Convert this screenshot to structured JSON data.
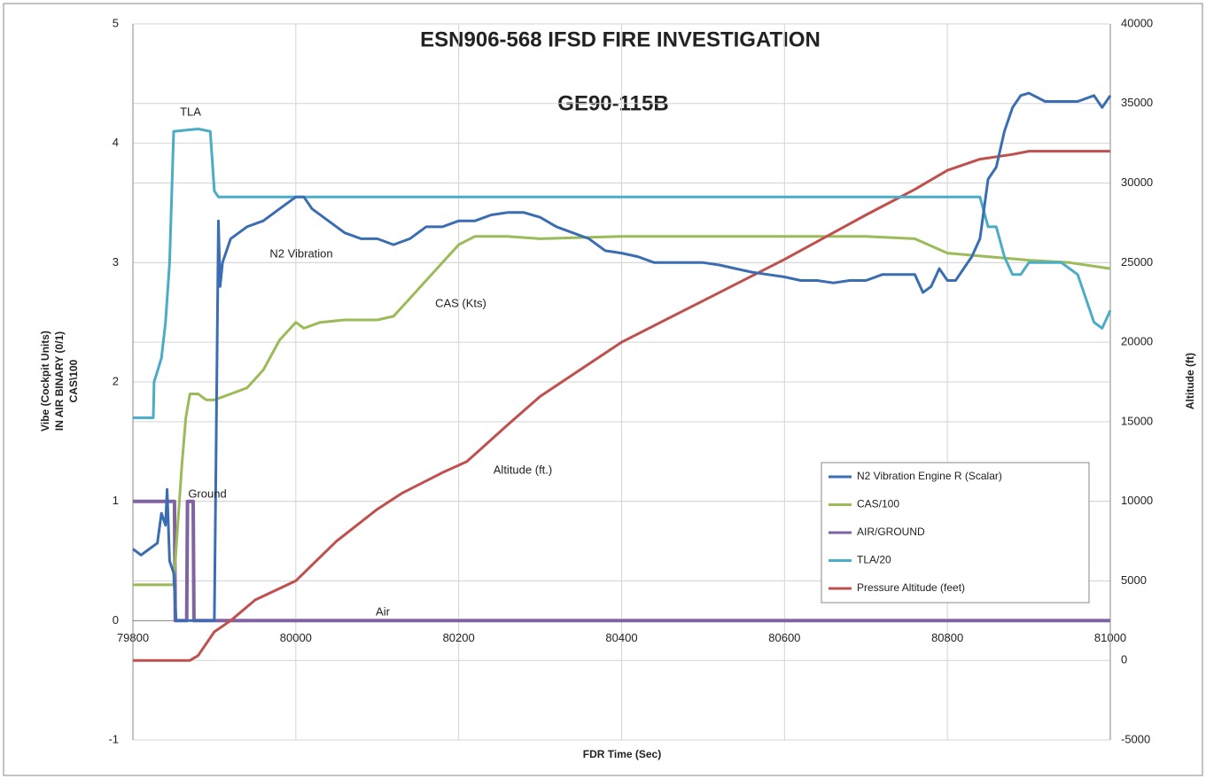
{
  "chart_data": {
    "type": "line",
    "title": "ESN906-568 IFSD FIRE INVESTIGATION",
    "subtitle": "GE90-115B",
    "xlabel": "FDR Time (Sec)",
    "ylabel": [
      "Vibe (Cockpit Units)",
      "IN AIR BINARY (0/1)",
      "CAS\\100"
    ],
    "y2label": "Altitude (ft)",
    "xlim": [
      79800,
      81000
    ],
    "xticks": [
      79800,
      80000,
      80200,
      80400,
      80600,
      80800,
      81000
    ],
    "ylim": [
      -1,
      5
    ],
    "yticks": [
      -1,
      0,
      1,
      2,
      3,
      4,
      5
    ],
    "y2lim": [
      -5000,
      40000
    ],
    "y2ticks": [
      -5000,
      0,
      5000,
      10000,
      15000,
      20000,
      25000,
      30000,
      35000,
      40000
    ],
    "grid": true,
    "legend": "lower right",
    "annotations": [
      "TLA",
      "N2 Vibration",
      "CAS (Kts)",
      "Altitude (ft.)",
      "Ground",
      "Air"
    ],
    "series": [
      {
        "name": "N2 Vibration Engine R (Scalar)",
        "color": "#3b6db3",
        "x": [
          79800,
          79810,
          79820,
          79830,
          79835,
          79840,
          79842,
          79845,
          79850,
          79853,
          79870,
          79900,
          79905,
          79907,
          79910,
          79920,
          79940,
          79960,
          79980,
          80000,
          80010,
          80020,
          80040,
          80060,
          80080,
          80100,
          80120,
          80140,
          80160,
          80180,
          80200,
          80220,
          80240,
          80260,
          80280,
          80300,
          80320,
          80340,
          80360,
          80380,
          80400,
          80420,
          80440,
          80460,
          80480,
          80500,
          80520,
          80540,
          80560,
          80580,
          80600,
          80620,
          80640,
          80660,
          80680,
          80700,
          80720,
          80740,
          80760,
          80770,
          80780,
          80790,
          80800,
          80810,
          80820,
          80830,
          80840,
          80850,
          80860,
          80870,
          80880,
          80890,
          80900,
          80920,
          80940,
          80960,
          80980,
          80990,
          81000
        ],
        "values": [
          0.6,
          0.55,
          0.6,
          0.65,
          0.9,
          0.8,
          1.1,
          0.5,
          0.4,
          0,
          0,
          0,
          3.35,
          2.8,
          3.0,
          3.2,
          3.3,
          3.35,
          3.45,
          3.55,
          3.55,
          3.45,
          3.35,
          3.25,
          3.2,
          3.2,
          3.15,
          3.2,
          3.3,
          3.3,
          3.35,
          3.35,
          3.4,
          3.42,
          3.42,
          3.38,
          3.3,
          3.25,
          3.2,
          3.1,
          3.08,
          3.05,
          3.0,
          3.0,
          3.0,
          3.0,
          2.98,
          2.95,
          2.92,
          2.9,
          2.88,
          2.85,
          2.85,
          2.83,
          2.85,
          2.85,
          2.9,
          2.9,
          2.9,
          2.75,
          2.8,
          2.95,
          2.85,
          2.85,
          2.95,
          3.05,
          3.2,
          3.7,
          3.8,
          4.1,
          4.3,
          4.4,
          4.42,
          4.35,
          4.35,
          4.35,
          4.4,
          4.3,
          4.4
        ]
      },
      {
        "name": "CAS/100",
        "color": "#9bbb59",
        "x": [
          79800,
          79850,
          79855,
          79860,
          79865,
          79870,
          79880,
          79890,
          79900,
          79920,
          79940,
          79960,
          79980,
          80000,
          80010,
          80030,
          80060,
          80100,
          80120,
          80140,
          80160,
          80180,
          80200,
          80220,
          80260,
          80300,
          80400,
          80500,
          80600,
          80700,
          80760,
          80800,
          80850,
          80900,
          80950,
          81000
        ],
        "values": [
          0.3,
          0.3,
          0.8,
          1.3,
          1.7,
          1.9,
          1.9,
          1.85,
          1.85,
          1.9,
          1.95,
          2.1,
          2.35,
          2.5,
          2.45,
          2.5,
          2.52,
          2.52,
          2.55,
          2.7,
          2.85,
          3.0,
          3.15,
          3.22,
          3.22,
          3.2,
          3.22,
          3.22,
          3.22,
          3.22,
          3.2,
          3.08,
          3.05,
          3.02,
          3.0,
          2.95
        ]
      },
      {
        "name": "AIR/GROUND",
        "color": "#8064a2",
        "x": [
          79800,
          79851,
          79852,
          79866,
          79867,
          79874,
          79875,
          81000
        ],
        "values": [
          1,
          1,
          0,
          0,
          1,
          1,
          0,
          0
        ]
      },
      {
        "name": "TLA/20",
        "color": "#4bacc6",
        "x": [
          79800,
          79825,
          79826,
          79835,
          79840,
          79845,
          79850,
          79880,
          79895,
          79900,
          79905,
          80840,
          80850,
          80860,
          80870,
          80880,
          80890,
          80900,
          80940,
          80960,
          80980,
          80990,
          81000
        ],
        "values": [
          1.7,
          1.7,
          2.0,
          2.2,
          2.5,
          3.0,
          4.1,
          4.12,
          4.1,
          3.6,
          3.55,
          3.55,
          3.3,
          3.3,
          3.05,
          2.9,
          2.9,
          3.0,
          3.0,
          2.9,
          2.5,
          2.45,
          2.6
        ]
      },
      {
        "name": "Pressure Altitude (feet)",
        "color": "#c0504d",
        "axis": "y2",
        "x": [
          79800,
          79870,
          79880,
          79900,
          79920,
          79950,
          80000,
          80050,
          80100,
          80130,
          80180,
          80210,
          80260,
          80300,
          80400,
          80500,
          80600,
          80700,
          80760,
          80800,
          80840,
          80880,
          80900,
          81000
        ],
        "values": [
          0,
          0,
          300,
          1800,
          2500,
          3800,
          5000,
          7500,
          9500,
          10500,
          11800,
          12500,
          14800,
          16600,
          20000,
          22600,
          25200,
          28000,
          29600,
          30800,
          31500,
          31800,
          32000,
          32000
        ]
      }
    ]
  }
}
